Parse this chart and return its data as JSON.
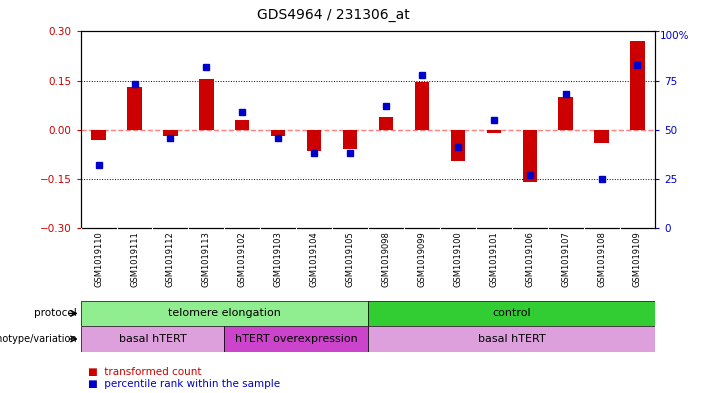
{
  "title": "GDS4964 / 231306_at",
  "samples": [
    "GSM1019110",
    "GSM1019111",
    "GSM1019112",
    "GSM1019113",
    "GSM1019102",
    "GSM1019103",
    "GSM1019104",
    "GSM1019105",
    "GSM1019098",
    "GSM1019099",
    "GSM1019100",
    "GSM1019101",
    "GSM1019106",
    "GSM1019107",
    "GSM1019108",
    "GSM1019109"
  ],
  "transformed_count": [
    -0.03,
    0.13,
    -0.02,
    0.155,
    0.03,
    -0.02,
    -0.065,
    -0.06,
    0.04,
    0.145,
    -0.095,
    -0.01,
    -0.16,
    0.1,
    -0.04,
    0.27
  ],
  "percentile_rank": [
    32,
    73,
    46,
    82,
    59,
    46,
    38,
    38,
    62,
    78,
    41,
    55,
    27,
    68,
    25,
    83
  ],
  "ylim_left": [
    -0.3,
    0.3
  ],
  "ylim_right": [
    0,
    100
  ],
  "yticks_left": [
    -0.3,
    -0.15,
    0.0,
    0.15,
    0.3
  ],
  "yticks_right": [
    0,
    25,
    50,
    75,
    100
  ],
  "protocol_groups": [
    {
      "label": "telomere elongation",
      "start": 0,
      "end": 8,
      "color": "#90EE90"
    },
    {
      "label": "control",
      "start": 8,
      "end": 16,
      "color": "#32CD32"
    }
  ],
  "genotype_groups": [
    {
      "label": "basal hTERT",
      "start": 0,
      "end": 4,
      "color": "#DDA0DD"
    },
    {
      "label": "hTERT overexpression",
      "start": 4,
      "end": 8,
      "color": "#CC44CC"
    },
    {
      "label": "basal hTERT",
      "start": 8,
      "end": 16,
      "color": "#DDA0DD"
    }
  ],
  "bar_color": "#CC0000",
  "dot_color": "#0000CC",
  "zero_line_color": "#FF8080",
  "dotted_line_color": "#000000",
  "bg_color": "#FFFFFF",
  "sample_bg_color": "#C8C8C8"
}
